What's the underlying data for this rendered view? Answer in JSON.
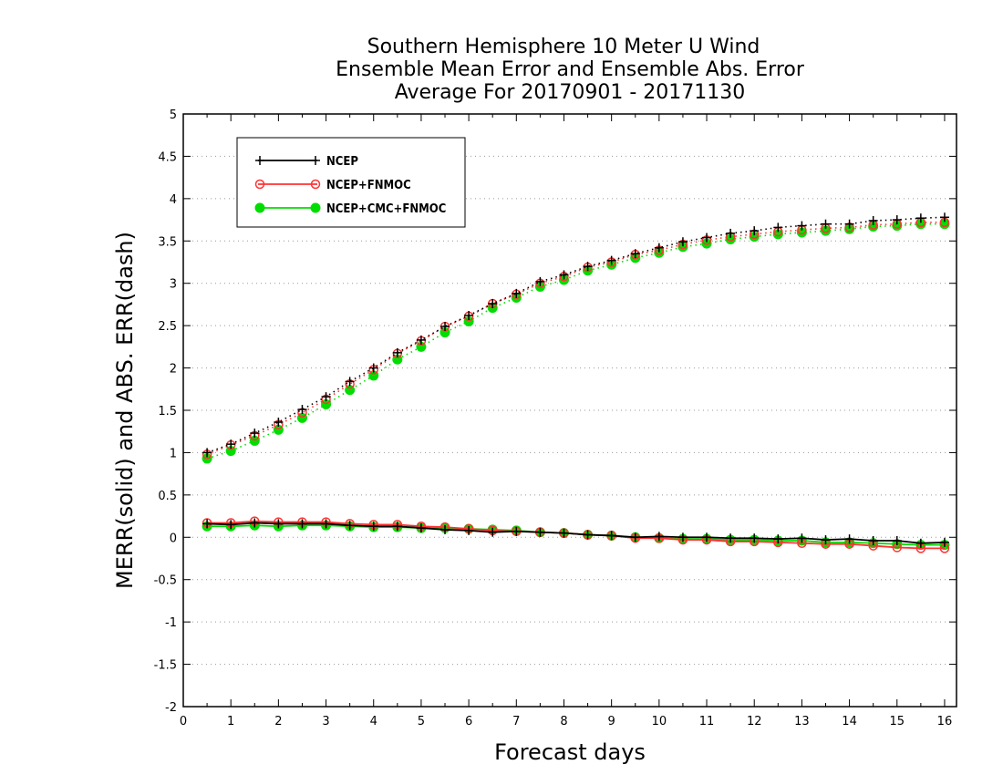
{
  "chart_data": {
    "type": "line",
    "title": [
      "Southern Hemisphere 10 Meter U Wind",
      "Ensemble Mean Error and Ensemble Abs. Error",
      "Average For 20170901 - 20171130"
    ],
    "xlabel": "Forecast days",
    "ylabel": "MERR(solid) and ABS. ERR(dash)",
    "xlim": [
      0,
      16.25
    ],
    "ylim": [
      -2,
      5
    ],
    "xticks": [
      "0",
      "1",
      "2",
      "3",
      "4",
      "5",
      "6",
      "7",
      "8",
      "9",
      "10",
      "11",
      "12",
      "13",
      "14",
      "15",
      "16"
    ],
    "yticks": [
      "5",
      "4.5",
      "4",
      "3.5",
      "3",
      "2.5",
      "2",
      "1.5",
      "1",
      "0.5",
      "0",
      "-0.5",
      "-1",
      "-1.5",
      "-2"
    ],
    "ytick_values": [
      5,
      4.5,
      4,
      3.5,
      3,
      2.5,
      2,
      1.5,
      1,
      0.5,
      0,
      -0.5,
      -1,
      -1.5,
      -2
    ],
    "grid": "horizontal dotted",
    "legend_position": "top-left",
    "x": [
      0.5,
      1,
      1.5,
      2,
      2.5,
      3,
      3.5,
      4,
      4.5,
      5,
      5.5,
      6,
      6.5,
      7,
      7.5,
      8,
      8.5,
      9,
      9.5,
      10,
      10.5,
      11,
      11.5,
      12,
      12.5,
      13,
      13.5,
      14,
      14.5,
      15,
      15.5,
      16
    ],
    "series": [
      {
        "name": "NCEP",
        "color": "#000000",
        "marker": "plus",
        "merr": [
          0.16,
          0.15,
          0.17,
          0.16,
          0.16,
          0.16,
          0.14,
          0.13,
          0.13,
          0.11,
          0.09,
          0.08,
          0.06,
          0.07,
          0.06,
          0.05,
          0.03,
          0.02,
          0.0,
          0.01,
          0.0,
          0.0,
          -0.01,
          -0.01,
          -0.02,
          -0.01,
          -0.03,
          -0.02,
          -0.04,
          -0.04,
          -0.07,
          -0.06
        ],
        "abs_err": [
          1.0,
          1.1,
          1.23,
          1.36,
          1.51,
          1.66,
          1.84,
          2.0,
          2.18,
          2.33,
          2.49,
          2.62,
          2.76,
          2.88,
          3.02,
          3.1,
          3.2,
          3.27,
          3.35,
          3.42,
          3.49,
          3.54,
          3.59,
          3.62,
          3.66,
          3.68,
          3.7,
          3.7,
          3.74,
          3.75,
          3.77,
          3.78
        ]
      },
      {
        "name": "NCEP+FNMOC",
        "color": "#ff3333",
        "marker": "open-circle",
        "merr": [
          0.17,
          0.17,
          0.19,
          0.18,
          0.18,
          0.18,
          0.16,
          0.15,
          0.15,
          0.13,
          0.12,
          0.1,
          0.08,
          0.07,
          0.06,
          0.05,
          0.03,
          0.02,
          -0.01,
          -0.01,
          -0.03,
          -0.03,
          -0.05,
          -0.05,
          -0.06,
          -0.07,
          -0.08,
          -0.08,
          -0.1,
          -0.12,
          -0.13,
          -0.13
        ],
        "abs_err": [
          0.98,
          1.09,
          1.2,
          1.33,
          1.47,
          1.63,
          1.81,
          1.98,
          2.17,
          2.32,
          2.49,
          2.61,
          2.76,
          2.87,
          3.0,
          3.08,
          3.19,
          3.25,
          3.34,
          3.39,
          3.46,
          3.51,
          3.55,
          3.58,
          3.61,
          3.63,
          3.65,
          3.66,
          3.69,
          3.7,
          3.72,
          3.72
        ]
      },
      {
        "name": "NCEP+CMC+FNMOC",
        "color": "#00dd00",
        "marker": "filled-circle",
        "merr": [
          0.13,
          0.13,
          0.14,
          0.13,
          0.14,
          0.14,
          0.13,
          0.12,
          0.12,
          0.11,
          0.11,
          0.1,
          0.09,
          0.08,
          0.06,
          0.05,
          0.03,
          0.02,
          0.0,
          -0.01,
          -0.02,
          -0.02,
          -0.03,
          -0.03,
          -0.04,
          -0.04,
          -0.06,
          -0.06,
          -0.07,
          -0.08,
          -0.09,
          -0.09
        ],
        "abs_err": [
          0.93,
          1.02,
          1.14,
          1.27,
          1.41,
          1.57,
          1.74,
          1.91,
          2.1,
          2.25,
          2.42,
          2.55,
          2.71,
          2.83,
          2.96,
          3.04,
          3.15,
          3.22,
          3.3,
          3.36,
          3.43,
          3.47,
          3.52,
          3.55,
          3.58,
          3.6,
          3.62,
          3.64,
          3.67,
          3.68,
          3.7,
          3.7
        ]
      }
    ]
  }
}
